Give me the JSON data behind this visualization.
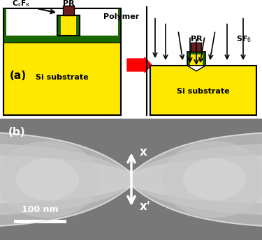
{
  "fig_width": 3.75,
  "fig_height": 3.44,
  "dpi": 100,
  "yellow": "#FFE800",
  "dark_green": "#1a6600",
  "pr_color": "#6B2020",
  "red_color": "#FF0000",
  "black": "#000000",
  "white": "#FFFFFF",
  "gray_bg": "#787878",
  "label_a": "(a)",
  "label_b": "(b)",
  "text_C4F8": "C$_4$F$_8$",
  "text_PR": "PR",
  "text_Polymer": "Polymer",
  "text_SF6": "SF$_6$",
  "text_Si_substrate": "Si substrate",
  "text_x": "x",
  "text_xprime": "x'",
  "text_100nm": "100 nm"
}
